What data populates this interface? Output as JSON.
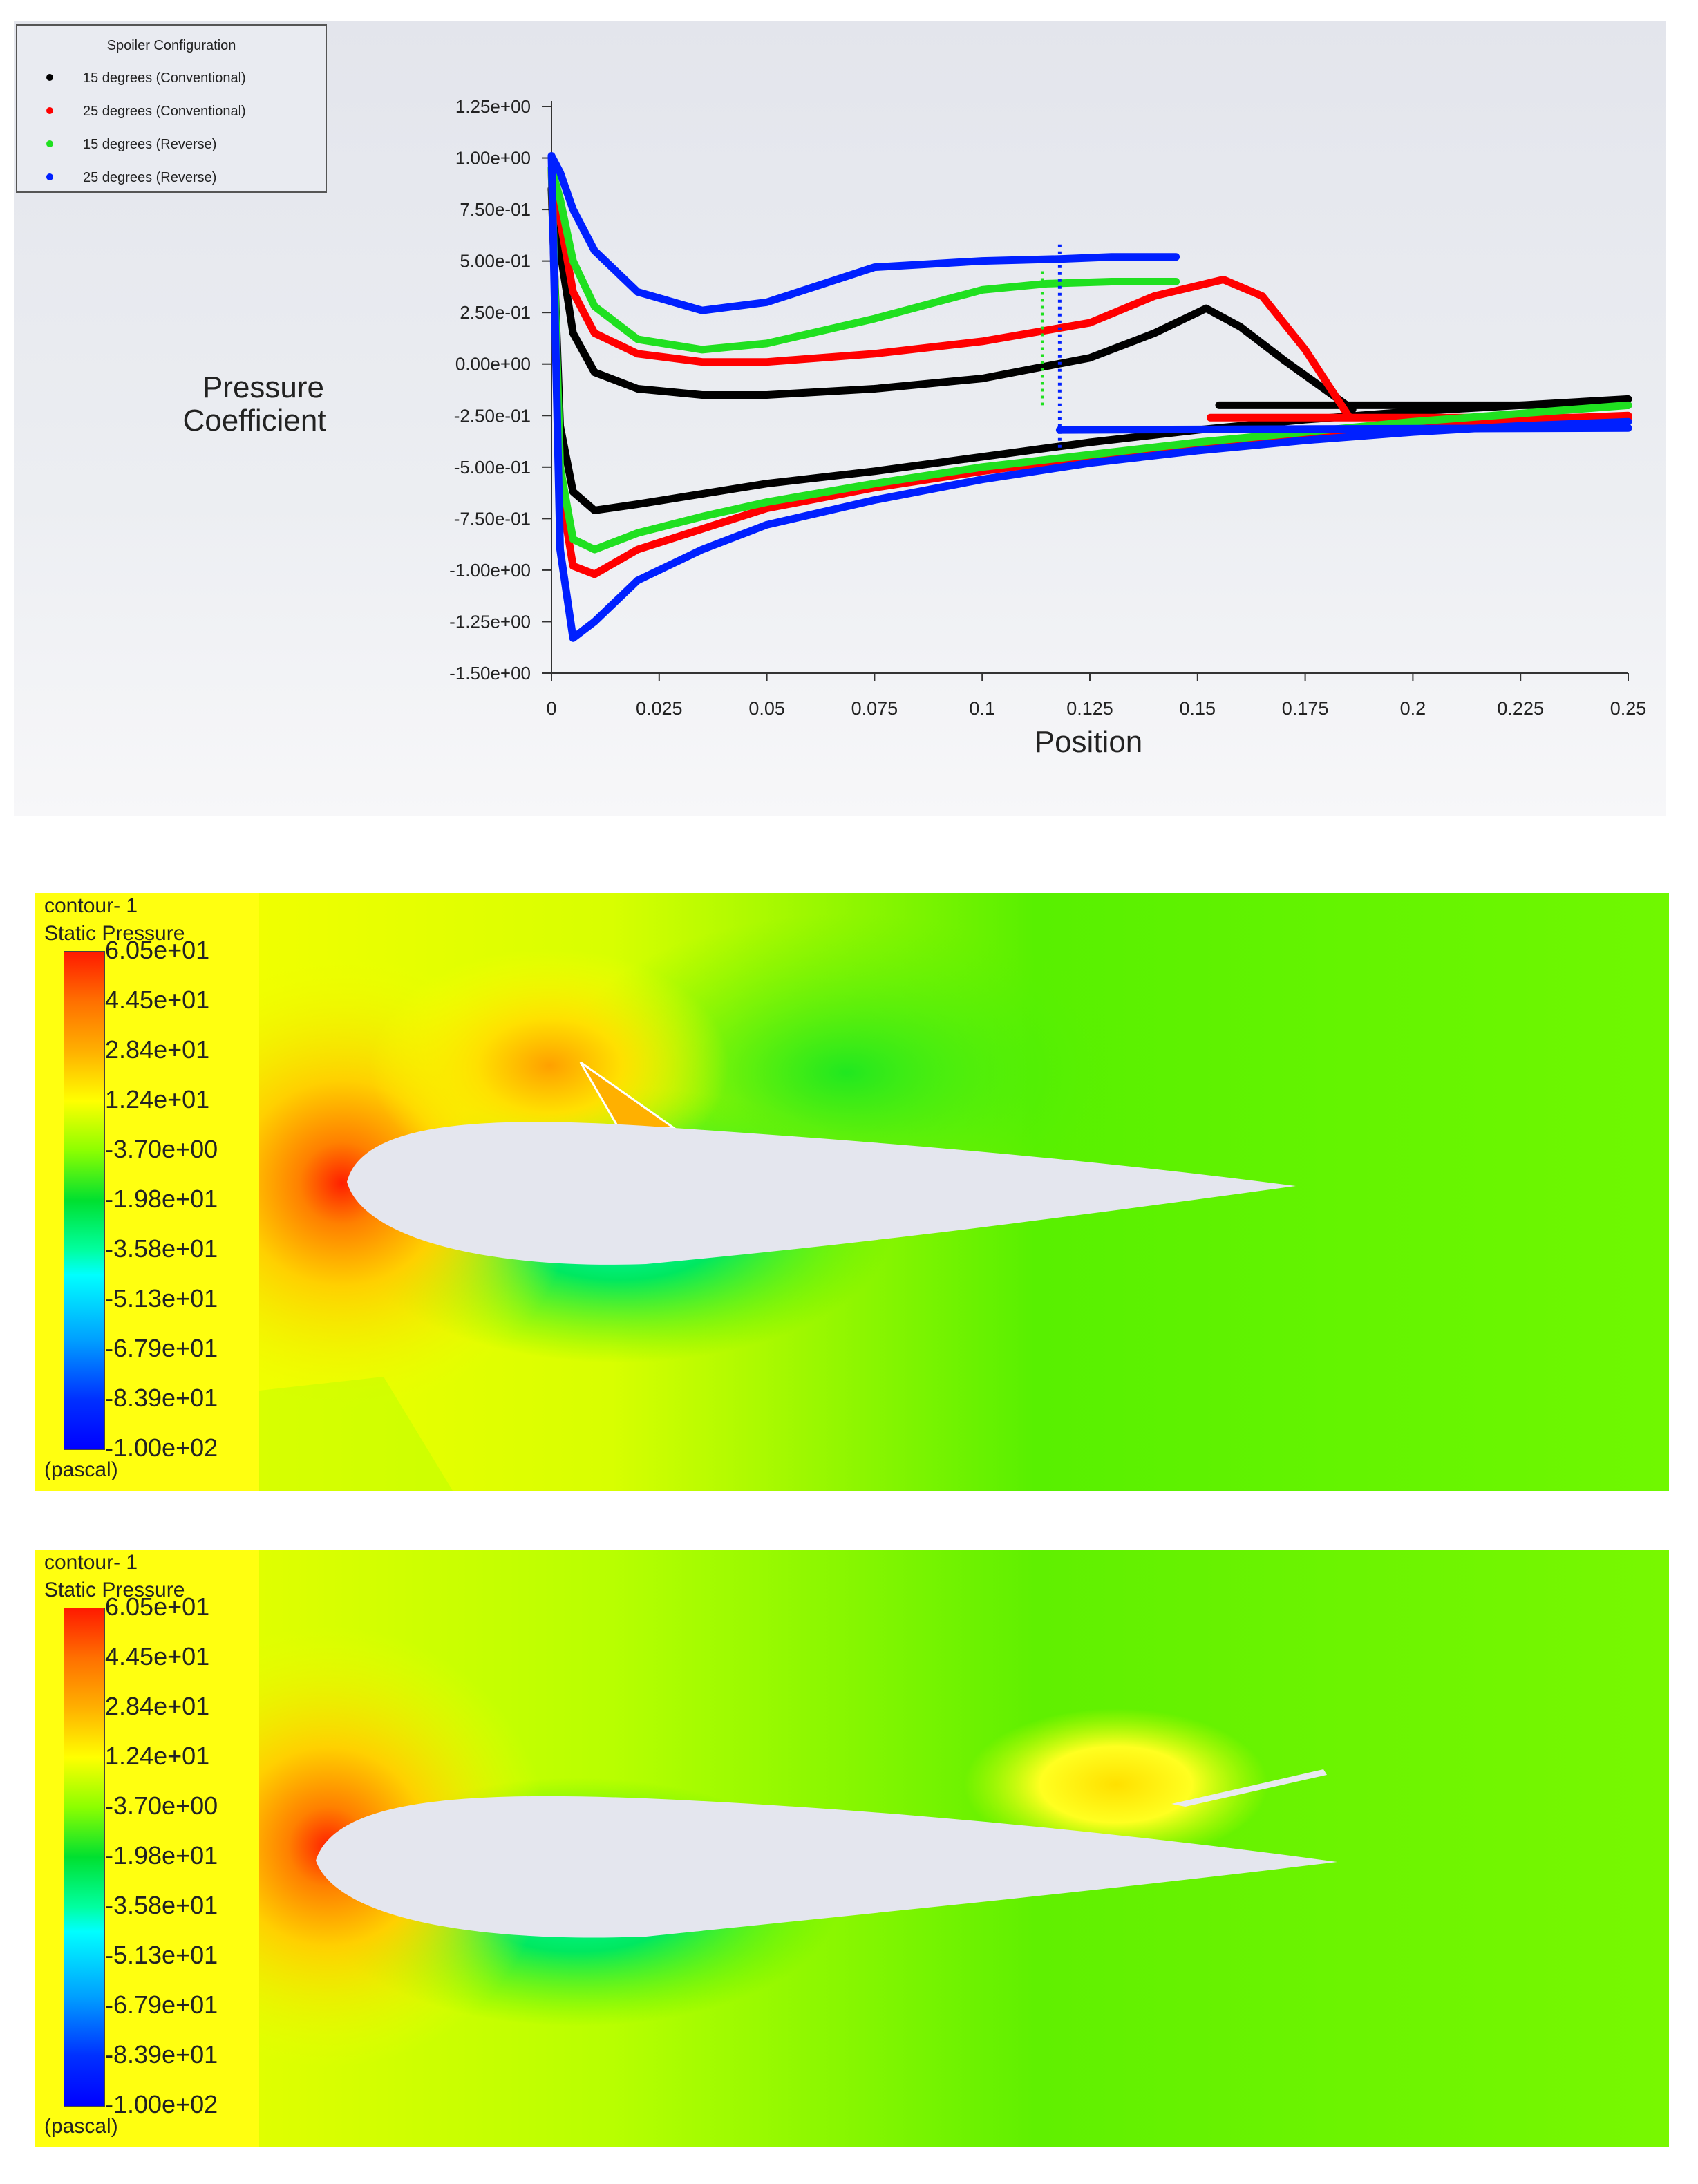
{
  "chart_data": {
    "type": "scatter",
    "title": "",
    "xlabel": "Position",
    "ylabel": "Pressure Coefficient",
    "xlim": [
      0,
      0.25
    ],
    "ylim": [
      -1.5,
      1.25
    ],
    "xticks": [
      0,
      0.025,
      0.05,
      0.075,
      0.1,
      0.125,
      0.15,
      0.175,
      0.2,
      0.225,
      0.25
    ],
    "xtick_labels": [
      "0",
      "0.025",
      "0.05",
      "0.075",
      "0.1",
      "0.125",
      "0.15",
      "0.175",
      "0.2",
      "0.225",
      "0.25"
    ],
    "yticks": [
      1.25,
      1.0,
      0.75,
      0.5,
      0.25,
      0.0,
      -0.25,
      -0.5,
      -0.75,
      -1.0,
      -1.25,
      -1.5
    ],
    "ytick_labels": [
      "1.25e+00",
      "1.00e+00",
      "7.50e-01",
      "5.00e-01",
      "2.50e-01",
      "0.00e+00",
      "-2.50e-01",
      "-5.00e-01",
      "-7.50e-01",
      "-1.00e+00",
      "-1.25e+00",
      "-1.50e+00"
    ],
    "legend_title": "Spoiler Configuration",
    "legend_position": "top-left",
    "series": [
      {
        "name": "15 degrees (Conventional)",
        "color": "#000000",
        "upper": {
          "x": [
            0,
            0.002,
            0.005,
            0.01,
            0.02,
            0.035,
            0.05,
            0.075,
            0.1,
            0.125,
            0.14,
            0.152,
            0.16,
            0.17,
            0.18,
            0.186
          ],
          "y": [
            0.85,
            0.55,
            0.15,
            -0.04,
            -0.12,
            -0.15,
            -0.15,
            -0.12,
            -0.07,
            0.03,
            0.15,
            0.27,
            0.18,
            0.02,
            -0.13,
            -0.22
          ]
        },
        "lower": {
          "x": [
            0,
            0.002,
            0.005,
            0.01,
            0.02,
            0.035,
            0.05,
            0.075,
            0.1,
            0.125,
            0.15,
            0.175,
            0.2,
            0.225,
            0.25
          ],
          "y": [
            0.85,
            -0.3,
            -0.62,
            -0.71,
            -0.68,
            -0.63,
            -0.58,
            -0.52,
            -0.45,
            -0.38,
            -0.32,
            -0.27,
            -0.23,
            -0.2,
            -0.17
          ]
        },
        "aft_upper": {
          "x": [
            0.155,
            0.25
          ],
          "y": [
            -0.2,
            -0.2
          ]
        }
      },
      {
        "name": "25 degrees (Conventional)",
        "color": "#ff0000",
        "upper": {
          "x": [
            0,
            0.002,
            0.005,
            0.01,
            0.02,
            0.035,
            0.05,
            0.075,
            0.1,
            0.125,
            0.14,
            0.156,
            0.165,
            0.175,
            0.185
          ],
          "y": [
            0.95,
            0.7,
            0.35,
            0.15,
            0.05,
            0.01,
            0.01,
            0.05,
            0.11,
            0.2,
            0.33,
            0.41,
            0.33,
            0.07,
            -0.25
          ]
        },
        "lower": {
          "x": [
            0,
            0.002,
            0.005,
            0.01,
            0.02,
            0.035,
            0.05,
            0.075,
            0.1,
            0.125,
            0.15,
            0.175,
            0.2,
            0.225,
            0.25
          ],
          "y": [
            0.95,
            -0.6,
            -0.98,
            -1.02,
            -0.9,
            -0.8,
            -0.7,
            -0.6,
            -0.52,
            -0.45,
            -0.39,
            -0.34,
            -0.3,
            -0.27,
            -0.25
          ]
        },
        "aft_upper": {
          "x": [
            0.153,
            0.25
          ],
          "y": [
            -0.26,
            -0.26
          ]
        }
      },
      {
        "name": "15 degrees (Reverse)",
        "color": "#20e020",
        "upper": {
          "x": [
            0,
            0.002,
            0.005,
            0.01,
            0.02,
            0.035,
            0.05,
            0.075,
            0.1,
            0.115,
            0.13,
            0.145
          ],
          "y": [
            0.95,
            0.8,
            0.5,
            0.28,
            0.12,
            0.07,
            0.1,
            0.22,
            0.36,
            0.39,
            0.4,
            0.4
          ]
        },
        "lower": {
          "x": [
            0,
            0.002,
            0.005,
            0.01,
            0.02,
            0.035,
            0.05,
            0.075,
            0.1,
            0.125,
            0.15,
            0.175,
            0.2,
            0.225,
            0.25
          ],
          "y": [
            0.95,
            -0.5,
            -0.85,
            -0.9,
            -0.82,
            -0.74,
            -0.67,
            -0.58,
            -0.5,
            -0.44,
            -0.38,
            -0.33,
            -0.28,
            -0.24,
            -0.2
          ]
        },
        "jump": {
          "x": [
            0.114,
            0.114
          ],
          "y": [
            0.45,
            -0.2
          ]
        }
      },
      {
        "name": "25 degrees (Reverse)",
        "color": "#0020ff",
        "upper": {
          "x": [
            0,
            0.002,
            0.005,
            0.01,
            0.02,
            0.035,
            0.05,
            0.075,
            0.1,
            0.118,
            0.13,
            0.145
          ],
          "y": [
            1.01,
            0.93,
            0.75,
            0.55,
            0.35,
            0.26,
            0.3,
            0.47,
            0.5,
            0.51,
            0.52,
            0.52
          ]
        },
        "lower": {
          "x": [
            0,
            0.002,
            0.005,
            0.01,
            0.02,
            0.035,
            0.05,
            0.075,
            0.1,
            0.125,
            0.15,
            0.175,
            0.2,
            0.225,
            0.25
          ],
          "y": [
            1.01,
            -0.9,
            -1.33,
            -1.25,
            -1.05,
            -0.9,
            -0.78,
            -0.66,
            -0.56,
            -0.48,
            -0.42,
            -0.37,
            -0.33,
            -0.3,
            -0.28
          ]
        },
        "aft_upper": {
          "x": [
            0.118,
            0.25
          ],
          "y": [
            -0.32,
            -0.31
          ]
        },
        "jump": {
          "x": [
            0.118,
            0.118
          ],
          "y": [
            0.58,
            -0.42
          ]
        }
      }
    ]
  },
  "contours": [
    {
      "title_line1": "contour- 1",
      "title_line2": "Static Pressure",
      "unit": "(pascal)",
      "levels": [
        "6.05e+01",
        "4.45e+01",
        "2.84e+01",
        "1.24e+01",
        "-3.70e+00",
        "-1.98e+01",
        "-3.58e+01",
        "-5.13e+01",
        "-6.79e+01",
        "-8.39e+01",
        "-1.00e+02"
      ],
      "spoiler": "conventional"
    },
    {
      "title_line1": "contour- 1",
      "title_line2": "Static Pressure",
      "unit": "(pascal)",
      "levels": [
        "6.05e+01",
        "4.45e+01",
        "2.84e+01",
        "1.24e+01",
        "-3.70e+00",
        "-1.98e+01",
        "-3.58e+01",
        "-5.13e+01",
        "-6.79e+01",
        "-8.39e+01",
        "-1.00e+02"
      ],
      "spoiler": "reverse"
    }
  ]
}
